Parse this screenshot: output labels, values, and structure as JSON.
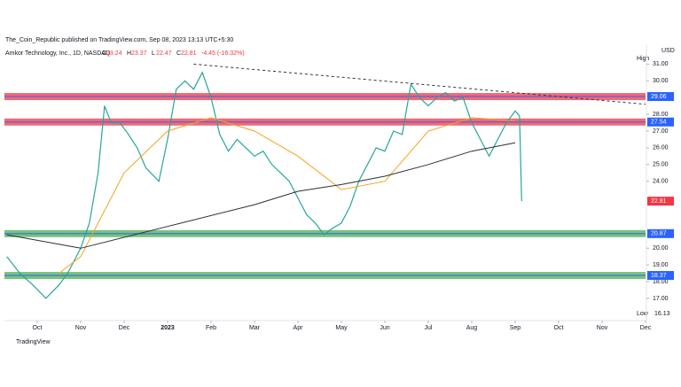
{
  "header": {
    "publisher": "The_Coin_Republic published on TradingView.com, Sep 08, 2023 13:13 UTC+5:30",
    "symbol": "Amkor Technology, Inc., 1D, NASDAQ",
    "ohlc": [
      {
        "label": "O",
        "value": "23.24"
      },
      {
        "label": "H",
        "value": "23.37"
      },
      {
        "label": "L",
        "value": "22.47"
      },
      {
        "label": "C",
        "value": "22.81"
      }
    ],
    "change": "-4.45 (-16.32%)"
  },
  "currency": "USD",
  "high_label": "High",
  "low": {
    "label": "Low",
    "value": 16.13
  },
  "footer": "TradingView",
  "chart_data": {
    "type": "line",
    "xlim": [
      -0.755,
      14.0
    ],
    "xticks": [
      {
        "value": 0,
        "label": "Oct"
      },
      {
        "value": 1,
        "label": "Nov"
      },
      {
        "value": 2,
        "label": "Dec"
      },
      {
        "value": 3,
        "label": "2023"
      },
      {
        "value": 4,
        "label": "Feb"
      },
      {
        "value": 5,
        "label": "Mar"
      },
      {
        "value": 6,
        "label": "Apr"
      },
      {
        "value": 7,
        "label": "May"
      },
      {
        "value": 8,
        "label": "Jun"
      },
      {
        "value": 9,
        "label": "Jul"
      },
      {
        "value": 10,
        "label": "Aug"
      },
      {
        "value": 11,
        "label": "Sep"
      },
      {
        "value": 12,
        "label": "Oct"
      },
      {
        "value": 13,
        "label": "Nov"
      },
      {
        "value": 14,
        "label": "Dec"
      }
    ],
    "ylim": [
      15.78,
      31.92
    ],
    "yticks": [
      {
        "value": 17,
        "label": "17.00"
      },
      {
        "value": 18,
        "label": "18.00"
      },
      {
        "value": 19,
        "label": "19.00"
      },
      {
        "value": 20,
        "label": "20.00"
      },
      {
        "value": 24,
        "label": "24.00"
      },
      {
        "value": 25,
        "label": "25.00"
      },
      {
        "value": 26,
        "label": "26.00"
      },
      {
        "value": 27,
        "label": "27.00"
      },
      {
        "value": 28,
        "label": "28.00"
      },
      {
        "value": 30,
        "label": "30.00"
      },
      {
        "value": 31,
        "label": "31.00"
      }
    ],
    "series": [
      {
        "color": "#26a69a",
        "x": [
          -0.7,
          -0.4,
          -0.1,
          0.2,
          0.5,
          0.7,
          1.0,
          1.2,
          1.4,
          1.55,
          1.7,
          1.9,
          2.1,
          2.3,
          2.5,
          2.8,
          3.0,
          3.2,
          3.4,
          3.6,
          3.8,
          4.0,
          4.2,
          4.4,
          4.6,
          4.8,
          5.0,
          5.2,
          5.4,
          5.6,
          5.8,
          6.0,
          6.2,
          6.4,
          6.6,
          6.8,
          7.0,
          7.2,
          7.4,
          7.6,
          7.8,
          8.0,
          8.2,
          8.4,
          8.6,
          8.8,
          9.0,
          9.2,
          9.4,
          9.6,
          9.8,
          10.0,
          10.2,
          10.4,
          10.6,
          10.8,
          11.0,
          11.1,
          11.15
        ],
        "values": [
          19.5,
          18.5,
          17.8,
          17.0,
          17.8,
          18.5,
          20.0,
          21.5,
          24.5,
          28.5,
          27.5,
          27.5,
          26.8,
          26.0,
          24.8,
          24.0,
          26.5,
          29.5,
          30.0,
          29.5,
          30.5,
          29.0,
          26.8,
          25.8,
          26.5,
          26.0,
          25.5,
          25.8,
          25.0,
          24.5,
          24.0,
          23.0,
          22.0,
          21.5,
          20.8,
          21.2,
          21.5,
          22.5,
          24.0,
          25.0,
          26.0,
          25.8,
          27.0,
          26.8,
          29.8,
          29.0,
          28.5,
          29.0,
          29.3,
          28.8,
          29.0,
          27.5,
          26.5,
          25.5,
          26.5,
          27.5,
          28.2,
          27.9,
          22.81
        ]
      },
      {
        "color": "#f7a21b",
        "x": [
          0.5,
          1.0,
          2.0,
          3.0,
          4.0,
          5.0,
          6.0,
          7.0,
          8.0,
          9.0,
          10.0,
          11.0
        ],
        "values": [
          18.5,
          19.5,
          24.5,
          27.0,
          27.8,
          27.0,
          25.5,
          23.5,
          24.0,
          27.0,
          27.8,
          27.6
        ]
      },
      {
        "color": "#2a2e39",
        "x": [
          -0.7,
          1.0,
          3.0,
          5.0,
          6.0,
          7.0,
          8.0,
          9.0,
          10.0,
          11.0
        ],
        "values": [
          20.8,
          20.0,
          21.3,
          22.6,
          23.4,
          23.8,
          24.3,
          25.0,
          25.8,
          26.3
        ]
      }
    ],
    "zones": [
      {
        "value": 29.06,
        "color": "#f23645"
      },
      {
        "value": 27.54,
        "color": "#f23645"
      },
      {
        "value": 20.87,
        "color": "#4caf50"
      },
      {
        "value": 18.37,
        "color": "#4caf50"
      }
    ],
    "price_tags": [
      {
        "value": 29.06,
        "color": "#2962ff"
      },
      {
        "value": 27.54,
        "color": "#2962ff"
      },
      {
        "value": 22.81,
        "color": "#f23645"
      },
      {
        "value": 20.87,
        "color": "#2962ff"
      },
      {
        "value": 18.37,
        "color": "#2962ff"
      }
    ]
  }
}
